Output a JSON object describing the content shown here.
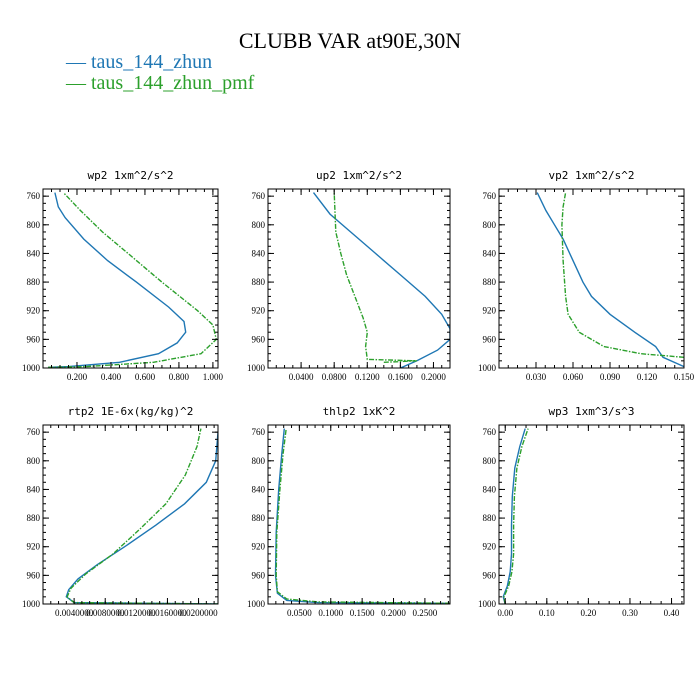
{
  "title": "CLUBB VAR at90E,30N",
  "legend": [
    {
      "label": "taus_144_zhun",
      "color": "#1f77b4"
    },
    {
      "label": "taus_144_zhun_pmf",
      "color": "#2ca02c"
    }
  ],
  "chart_data": [
    {
      "type": "line",
      "title": "wp2   1xm^2/s^2",
      "xlim": [
        0.0,
        1.03
      ],
      "ylim": [
        1000,
        750
      ],
      "xticks": [
        0.2,
        0.4,
        0.6,
        0.8,
        1.0
      ],
      "xtick_labels": [
        "0.200",
        "0.400",
        "0.600",
        "0.800",
        "1.000"
      ],
      "yticks": [
        760,
        800,
        840,
        880,
        920,
        960,
        1000
      ],
      "ytick_labels": [
        "760",
        "800",
        "840",
        "880",
        "920",
        "960",
        "1000"
      ],
      "series": [
        {
          "name": "taus_144_zhun",
          "color": "#1f77b4",
          "dashed": false,
          "x": [
            0.03,
            0.15,
            0.45,
            0.68,
            0.79,
            0.84,
            0.83,
            0.74,
            0.55,
            0.38,
            0.24,
            0.13,
            0.09,
            0.07
          ],
          "y": [
            999,
            998,
            992,
            980,
            965,
            950,
            935,
            915,
            880,
            850,
            820,
            790,
            775,
            755
          ]
        },
        {
          "name": "taus_144_zhun_pmf",
          "color": "#2ca02c",
          "dashed": true,
          "x": [
            0.03,
            0.25,
            0.65,
            0.93,
            1.02,
            1.0,
            0.91,
            0.7,
            0.5,
            0.35,
            0.22,
            0.16,
            0.12
          ],
          "y": [
            999,
            998,
            992,
            980,
            960,
            940,
            920,
            880,
            840,
            810,
            780,
            765,
            755
          ]
        }
      ]
    },
    {
      "type": "line",
      "title": "up2   1xm^2/s^2",
      "xlim": [
        0.0,
        0.22
      ],
      "ylim": [
        1000,
        750
      ],
      "xticks": [
        0.04,
        0.08,
        0.12,
        0.16,
        0.2
      ],
      "xtick_labels": [
        "0.0400",
        "0.0800",
        "0.1200",
        "0.1600",
        "0.2000"
      ],
      "yticks": [
        760,
        800,
        840,
        880,
        920,
        960,
        1000
      ],
      "ytick_labels": [
        "760",
        "800",
        "840",
        "880",
        "920",
        "960",
        "1000"
      ],
      "series": [
        {
          "name": "taus_144_zhun",
          "color": "#1f77b4",
          "dashed": false,
          "x": [
            0.16,
            0.18,
            0.205,
            0.22,
            0.22,
            0.21,
            0.19,
            0.16,
            0.13,
            0.1,
            0.075,
            0.055
          ],
          "y": [
            1000,
            990,
            975,
            960,
            945,
            925,
            900,
            870,
            840,
            810,
            785,
            755
          ]
        },
        {
          "name": "taus_144_zhun_pmf",
          "color": "#2ca02c",
          "dashed": true,
          "x": [
            0.14,
            0.18,
            0.12,
            0.118,
            0.12,
            0.115,
            0.105,
            0.095,
            0.088,
            0.082,
            0.08
          ],
          "y": [
            992,
            990,
            988,
            970,
            950,
            930,
            900,
            870,
            840,
            810,
            755
          ]
        }
      ]
    },
    {
      "type": "line",
      "title": "vp2   1xm^2/s^2",
      "xlim": [
        0.0,
        0.15
      ],
      "ylim": [
        1000,
        750
      ],
      "xticks": [
        0.03,
        0.06,
        0.09,
        0.12,
        0.15
      ],
      "xtick_labels": [
        "0.030",
        "0.060",
        "0.090",
        "0.120",
        "0.150"
      ],
      "yticks": [
        760,
        800,
        840,
        880,
        920,
        960,
        1000
      ],
      "ytick_labels": [
        "760",
        "800",
        "840",
        "880",
        "920",
        "960",
        "1000"
      ],
      "series": [
        {
          "name": "taus_144_zhun",
          "color": "#1f77b4",
          "dashed": false,
          "x": [
            0.15,
            0.133,
            0.127,
            0.11,
            0.09,
            0.075,
            0.068,
            0.06,
            0.052,
            0.045,
            0.038,
            0.031
          ],
          "y": [
            998,
            985,
            970,
            950,
            925,
            900,
            880,
            850,
            820,
            800,
            780,
            755
          ]
        },
        {
          "name": "taus_144_zhun_pmf",
          "color": "#2ca02c",
          "dashed": true,
          "x": [
            0.15,
            0.115,
            0.085,
            0.065,
            0.056,
            0.054,
            0.052,
            0.051,
            0.052,
            0.054
          ],
          "y": [
            985,
            980,
            970,
            950,
            925,
            900,
            850,
            800,
            775,
            755
          ]
        }
      ]
    },
    {
      "type": "line",
      "title": "rtp2   1E-6x(kg/kg)^2",
      "xlim": [
        0.0,
        0.0225
      ],
      "ylim": [
        1000,
        750
      ],
      "xticks": [
        0.004,
        0.008,
        0.012,
        0.016,
        0.02
      ],
      "xtick_labels": [
        "0.0040000",
        "0.0080000",
        "0.0120000",
        "0.0160000",
        "0.0200000"
      ],
      "yticks": [
        760,
        800,
        840,
        880,
        920,
        960,
        1000
      ],
      "ytick_labels": [
        "760",
        "800",
        "840",
        "880",
        "920",
        "960",
        "1000"
      ],
      "series": [
        {
          "name": "taus_144_zhun",
          "color": "#1f77b4",
          "dashed": false,
          "x": [
            0.0225,
            0.004,
            0.003,
            0.0033,
            0.0045,
            0.007,
            0.0105,
            0.0145,
            0.0182,
            0.021,
            0.0222,
            0.0225
          ],
          "y": [
            1000,
            998,
            990,
            980,
            965,
            945,
            920,
            890,
            860,
            830,
            800,
            760
          ]
        },
        {
          "name": "taus_144_zhun_pmf",
          "color": "#2ca02c",
          "dashed": true,
          "x": [
            0.0225,
            0.004,
            0.0031,
            0.0036,
            0.0055,
            0.009,
            0.0125,
            0.0158,
            0.0183,
            0.0198,
            0.0203
          ],
          "y": [
            1000,
            998,
            990,
            978,
            958,
            930,
            895,
            860,
            820,
            780,
            755
          ]
        }
      ]
    },
    {
      "type": "line",
      "title": "thlp2   1xK^2",
      "xlim": [
        0.0,
        0.29
      ],
      "ylim": [
        1000,
        750
      ],
      "xticks": [
        0.05,
        0.1,
        0.15,
        0.2,
        0.25
      ],
      "xtick_labels": [
        "0.0500",
        "0.1000",
        "0.1500",
        "0.2000",
        "0.2500"
      ],
      "yticks": [
        760,
        800,
        840,
        880,
        920,
        960,
        1000
      ],
      "ytick_labels": [
        "760",
        "800",
        "840",
        "880",
        "920",
        "960",
        "1000"
      ],
      "series": [
        {
          "name": "taus_144_zhun",
          "color": "#1f77b4",
          "dashed": false,
          "x": [
            0.29,
            0.08,
            0.03,
            0.015,
            0.012,
            0.013,
            0.017,
            0.022,
            0.026
          ],
          "y": [
            999,
            998,
            995,
            985,
            960,
            900,
            840,
            790,
            755
          ]
        },
        {
          "name": "taus_144_zhun_pmf",
          "color": "#2ca02c",
          "dashed": true,
          "x": [
            0.29,
            0.08,
            0.03,
            0.015,
            0.013,
            0.014,
            0.019,
            0.024,
            0.029
          ],
          "y": [
            999,
            997,
            993,
            983,
            960,
            900,
            840,
            790,
            755
          ]
        }
      ]
    },
    {
      "type": "line",
      "title": "wp3   1xm^3/s^3",
      "xlim": [
        -0.015,
        0.43
      ],
      "ylim": [
        1000,
        750
      ],
      "xticks": [
        0.0,
        0.1,
        0.2,
        0.3,
        0.4
      ],
      "xtick_labels": [
        "0.00",
        "0.10",
        "0.20",
        "0.30",
        "0.40"
      ],
      "yticks": [
        760,
        800,
        840,
        880,
        920,
        960,
        1000
      ],
      "ytick_labels": [
        "760",
        "800",
        "840",
        "880",
        "920",
        "960",
        "1000"
      ],
      "series": [
        {
          "name": "taus_144_zhun",
          "color": "#1f77b4",
          "dashed": false,
          "x": [
            0.0,
            -0.005,
            0.005,
            0.012,
            0.015,
            0.015,
            0.017,
            0.023,
            0.035,
            0.048
          ],
          "y": [
            1000,
            990,
            975,
            955,
            930,
            890,
            850,
            810,
            780,
            755
          ]
        },
        {
          "name": "taus_144_zhun_pmf",
          "color": "#2ca02c",
          "dashed": true,
          "x": [
            0.0,
            -0.003,
            0.008,
            0.016,
            0.02,
            0.02,
            0.022,
            0.028,
            0.04,
            0.055
          ],
          "y": [
            1000,
            990,
            975,
            955,
            930,
            890,
            850,
            810,
            780,
            755
          ]
        }
      ]
    }
  ]
}
